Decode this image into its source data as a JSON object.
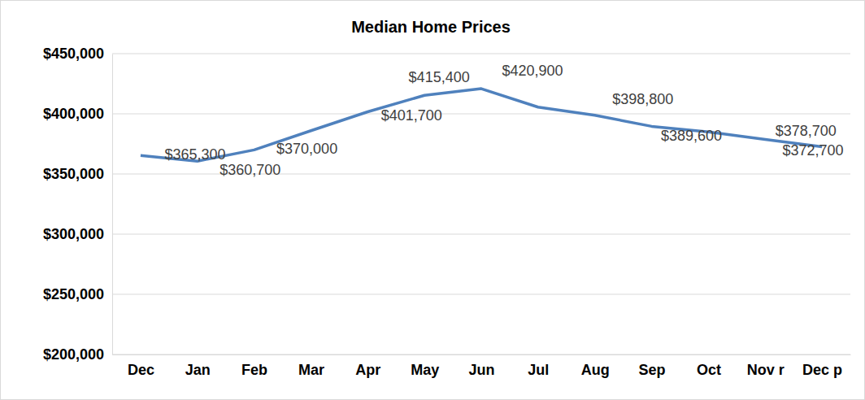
{
  "chart_data": {
    "type": "line",
    "title": "Median Home Prices",
    "categories": [
      "Dec",
      "Jan",
      "Feb",
      "Mar",
      "Apr",
      "May",
      "Jun",
      "Jul",
      "Aug",
      "Sep",
      "Oct",
      "Nov r",
      "Dec p"
    ],
    "values": [
      365300,
      360700,
      370000,
      386000,
      401700,
      415400,
      420900,
      405600,
      398800,
      389600,
      385000,
      378700,
      372700
    ],
    "value_labels": [
      "$365,300",
      "$360,700",
      "$370,000",
      null,
      "$401,700",
      "$415,400",
      "$420,900",
      null,
      "$398,800",
      "$389,600",
      null,
      "$378,700",
      "$372,700"
    ],
    "data_labels": true,
    "color": "#4f81bd",
    "ylim": [
      200000,
      450000
    ],
    "yticks": [
      {
        "value": 200000,
        "label": "$200,000"
      },
      {
        "value": 250000,
        "label": "$250,000"
      },
      {
        "value": 300000,
        "label": "$300,000"
      },
      {
        "value": 350000,
        "label": "$350,000"
      },
      {
        "value": 400000,
        "label": "$400,000"
      },
      {
        "value": 450000,
        "label": "$450,000"
      }
    ],
    "grid": true
  }
}
